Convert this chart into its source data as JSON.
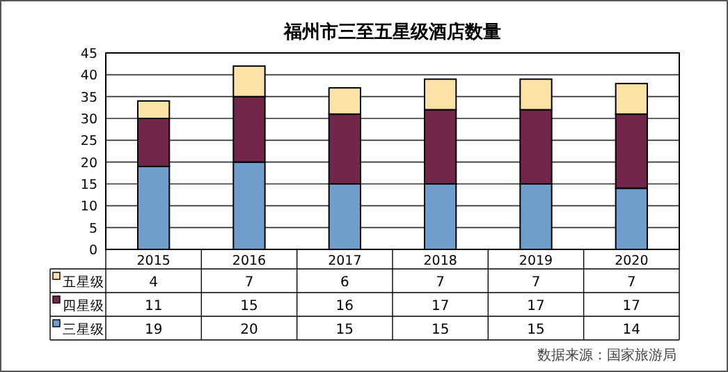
{
  "chart_data": {
    "type": "bar",
    "stacked": true,
    "title": "福州市三至五星级酒店数量",
    "categories": [
      "2015",
      "2016",
      "2017",
      "2018",
      "2019",
      "2020"
    ],
    "series": [
      {
        "name": "三星级",
        "color": "#6f9dcc",
        "values": [
          19,
          20,
          15,
          15,
          15,
          14
        ]
      },
      {
        "name": "四星级",
        "color": "#72264a",
        "values": [
          11,
          15,
          16,
          17,
          17,
          17
        ]
      },
      {
        "name": "五星级",
        "color": "#fde2a6",
        "values": [
          4,
          7,
          6,
          7,
          7,
          7
        ]
      }
    ],
    "ylim": [
      0,
      45
    ],
    "yticks": [
      0,
      5,
      10,
      15,
      20,
      25,
      30,
      35,
      40,
      45
    ],
    "grid": "y",
    "data_labels": true,
    "legend": "bottom left",
    "annotations": [
      "数据来源：国家旅游局"
    ]
  }
}
